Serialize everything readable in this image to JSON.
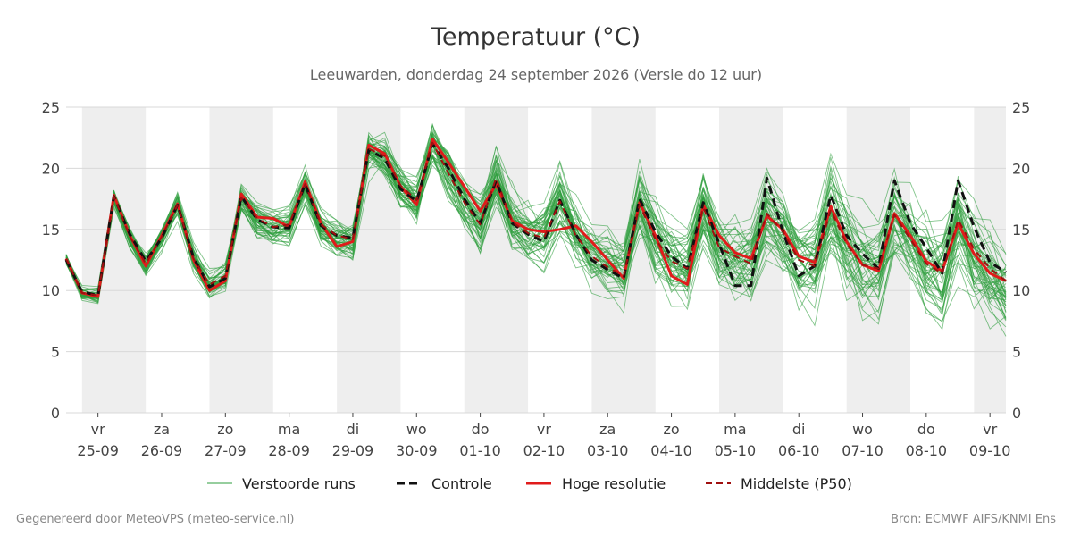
{
  "chart_data": {
    "type": "line",
    "title": "Temperatuur (°C)",
    "subtitle": "Leeuwarden, donderdag 24 september 2026 (Versie do 12 uur)",
    "footer_left": "Gegenereerd door MeteoVPS (meteo-service.nl)",
    "footer_right": "Bron: ECMWF AIFS/KNMI Ens",
    "ylim": [
      0,
      25
    ],
    "yticks": [
      0,
      5,
      10,
      15,
      20,
      25
    ],
    "xlim": [
      -0.25,
      14.5
    ],
    "grid": true,
    "legend_position": "bottom",
    "x_ticks": [
      {
        "day": "vr",
        "date": "25-09"
      },
      {
        "day": "za",
        "date": "26-09"
      },
      {
        "day": "zo",
        "date": "27-09"
      },
      {
        "day": "ma",
        "date": "28-09"
      },
      {
        "day": "di",
        "date": "29-09"
      },
      {
        "day": "wo",
        "date": "30-09"
      },
      {
        "day": "do",
        "date": "01-10"
      },
      {
        "day": "vr",
        "date": "02-10"
      },
      {
        "day": "za",
        "date": "03-10"
      },
      {
        "day": "zo",
        "date": "04-10"
      },
      {
        "day": "ma",
        "date": "05-10"
      },
      {
        "day": "di",
        "date": "06-10"
      },
      {
        "day": "wo",
        "date": "07-10"
      },
      {
        "day": "do",
        "date": "08-10"
      },
      {
        "day": "vr",
        "date": "09-10"
      }
    ],
    "x_step_days": 0.25,
    "x_start_day": -0.25,
    "series": [
      {
        "name": "Hoge resolutie",
        "color": "#e01b1b",
        "values": [
          12.6,
          9.8,
          9.5,
          17.8,
          14.5,
          12.0,
          14.5,
          17.1,
          12.5,
          10.0,
          10.8,
          17.9,
          16.0,
          15.9,
          15.2,
          18.9,
          15.5,
          13.6,
          14.0,
          21.9,
          21.2,
          18.5,
          17.0,
          22.4,
          20.5,
          18.5,
          16.5,
          18.7,
          15.7,
          15.0,
          14.8,
          15.0,
          15.3,
          14.0,
          12.5,
          11.0,
          17.2,
          14.5,
          11.2,
          10.5,
          17.0,
          14.5,
          13.1,
          12.6,
          16.1,
          15.0,
          12.8,
          12.3,
          16.9,
          14.0,
          12.1,
          11.6,
          16.3,
          14.5,
          12.4,
          11.6,
          15.5,
          13.0,
          11.4,
          10.8,
          15.0
        ]
      },
      {
        "name": "Controle",
        "color": "#111111",
        "values": [
          12.5,
          9.9,
          9.6,
          17.7,
          14.6,
          12.4,
          14.3,
          17.0,
          12.7,
          10.3,
          11.0,
          17.7,
          15.8,
          15.2,
          15.1,
          18.7,
          15.3,
          14.5,
          14.3,
          21.5,
          20.8,
          18.3,
          17.3,
          22.0,
          20.0,
          17.5,
          15.5,
          19.0,
          15.5,
          14.6,
          14.0,
          17.4,
          14.6,
          12.5,
          11.7,
          11.0,
          17.5,
          14.8,
          12.8,
          11.8,
          17.2,
          13.8,
          10.4,
          10.4,
          19.2,
          14.8,
          11.2,
          12.0,
          17.8,
          14.5,
          13.0,
          11.8,
          19.0,
          15.5,
          13.5,
          11.4,
          19.0,
          15.2,
          12.3,
          11.5,
          16.0
        ]
      },
      {
        "name": "Middelste (P50)",
        "color": "#a01010",
        "values": [
          12.6,
          9.8,
          9.6,
          17.7,
          14.4,
          12.2,
          14.4,
          17.0,
          12.6,
          10.5,
          11.2,
          17.6,
          15.9,
          15.2,
          15.4,
          18.7,
          15.4,
          14.5,
          14.2,
          21.6,
          21.0,
          18.6,
          17.4,
          22.1,
          19.6,
          17.2,
          15.4,
          19.2,
          15.6,
          14.7,
          14.3,
          17.3,
          14.5,
          12.8,
          11.9,
          11.2,
          17.0,
          14.2,
          12.4,
          11.8,
          16.8,
          13.5,
          12.8,
          12.2,
          16.3,
          14.8,
          12.5,
          12.0,
          16.6,
          13.8,
          12.1,
          11.8,
          16.2,
          14.2,
          12.2,
          11.4,
          15.8,
          13.4,
          11.8,
          10.8,
          15.2
        ]
      }
    ]
  },
  "legend": {
    "perturbed": "Verstoorde runs",
    "control": "Controle",
    "hires": "Hoge resolutie",
    "median": "Middelste (P50)"
  },
  "colors": {
    "ensemble": "#2e9e3e",
    "night_band": "#eeeeee",
    "grid": "#d8d8d8"
  }
}
